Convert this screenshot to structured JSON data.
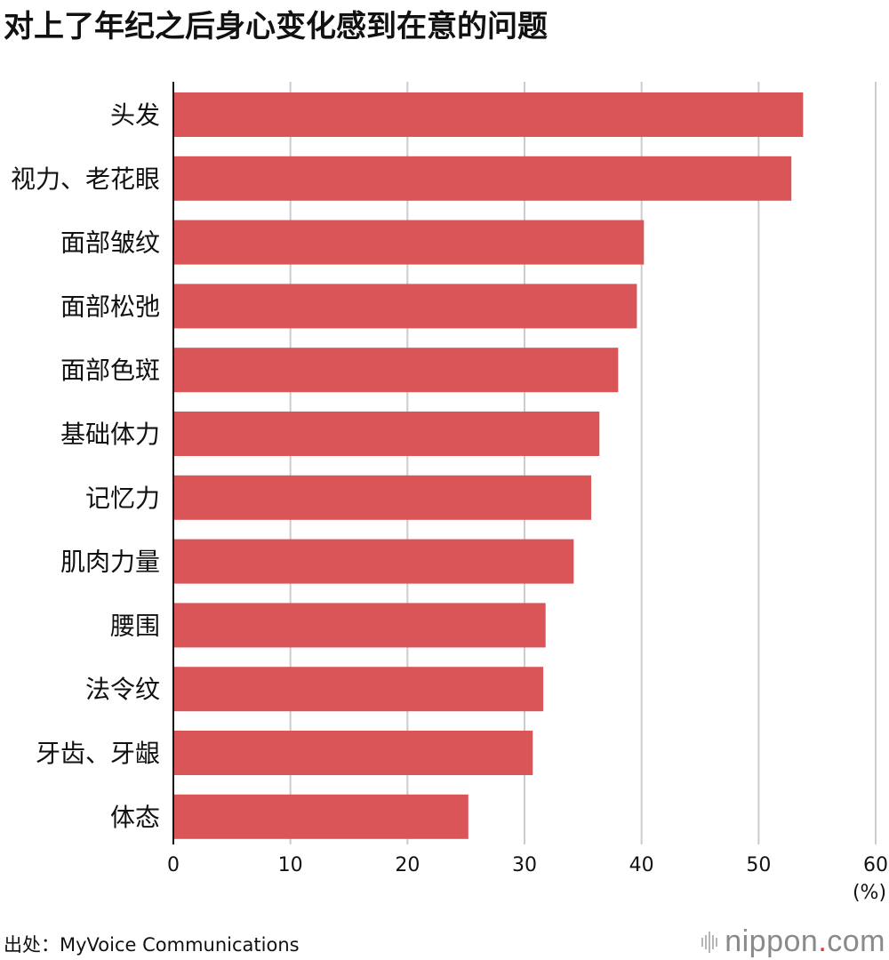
{
  "chart_data": {
    "type": "bar",
    "orientation": "horizontal",
    "title": "对上了年纪之后身心变化感到在意的问题",
    "categories": [
      "头发",
      "视力、老花眼",
      "面部皱纹",
      "面部松弛",
      "面部色斑",
      "基础体力",
      "记忆力",
      "肌肉力量",
      "腰围",
      "法令纹",
      "牙齿、牙龈",
      "体态"
    ],
    "values": [
      53.8,
      52.8,
      40.2,
      39.6,
      38.0,
      36.4,
      35.7,
      34.2,
      31.8,
      31.6,
      30.7,
      25.2
    ],
    "xlim": [
      0,
      60
    ],
    "xticks": [
      0,
      10,
      20,
      30,
      40,
      50,
      60
    ],
    "xunit": "(%)",
    "grid": true,
    "bar_color": "#d95558",
    "grid_color": "#cccccc",
    "axis_color": "#111111"
  },
  "source": "出处：MyVoice Communications",
  "logo": {
    "text_main": "nippon",
    "text_dot": ".",
    "text_tail": "com",
    "accent": "#d9373e",
    "icon": "sound-bars-icon"
  }
}
